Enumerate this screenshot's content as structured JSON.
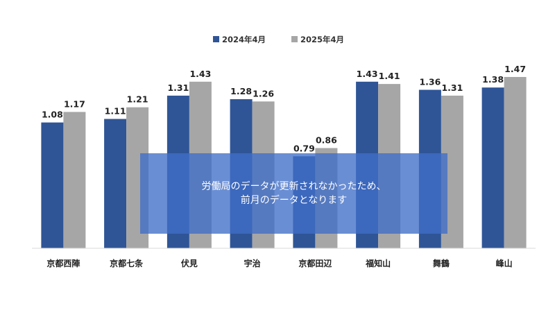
{
  "chart_data": {
    "type": "bar",
    "title": "",
    "xlabel": "",
    "ylabel": "",
    "ylim": [
      0,
      1.55
    ],
    "grid": false,
    "legend_position": "top-center",
    "categories": [
      "京都西陣",
      "京都七条",
      "伏見",
      "宇治",
      "京都田辺",
      "福知山",
      "舞鶴",
      "峰山"
    ],
    "series": [
      {
        "name": "2024年4月",
        "color": "#2f5597",
        "values": [
          1.08,
          1.11,
          1.31,
          1.28,
          0.79,
          1.43,
          1.36,
          1.38
        ],
        "labels": [
          "1.08",
          "1.11",
          "1.31",
          "1.28",
          "0.79",
          "1.43",
          "1.36",
          "1.38"
        ]
      },
      {
        "name": "2025年4月",
        "color": "#a6a6a6",
        "values": [
          1.17,
          1.21,
          1.43,
          1.26,
          0.86,
          1.41,
          1.31,
          1.47
        ],
        "labels": [
          "1.17",
          "1.21",
          "1.43",
          "1.26",
          "0.86",
          "1.41",
          "1.31",
          "1.47"
        ]
      }
    ]
  },
  "notice": {
    "line1": "労働局のデータが更新されなかったため、",
    "line2": "前月のデータとなります"
  }
}
